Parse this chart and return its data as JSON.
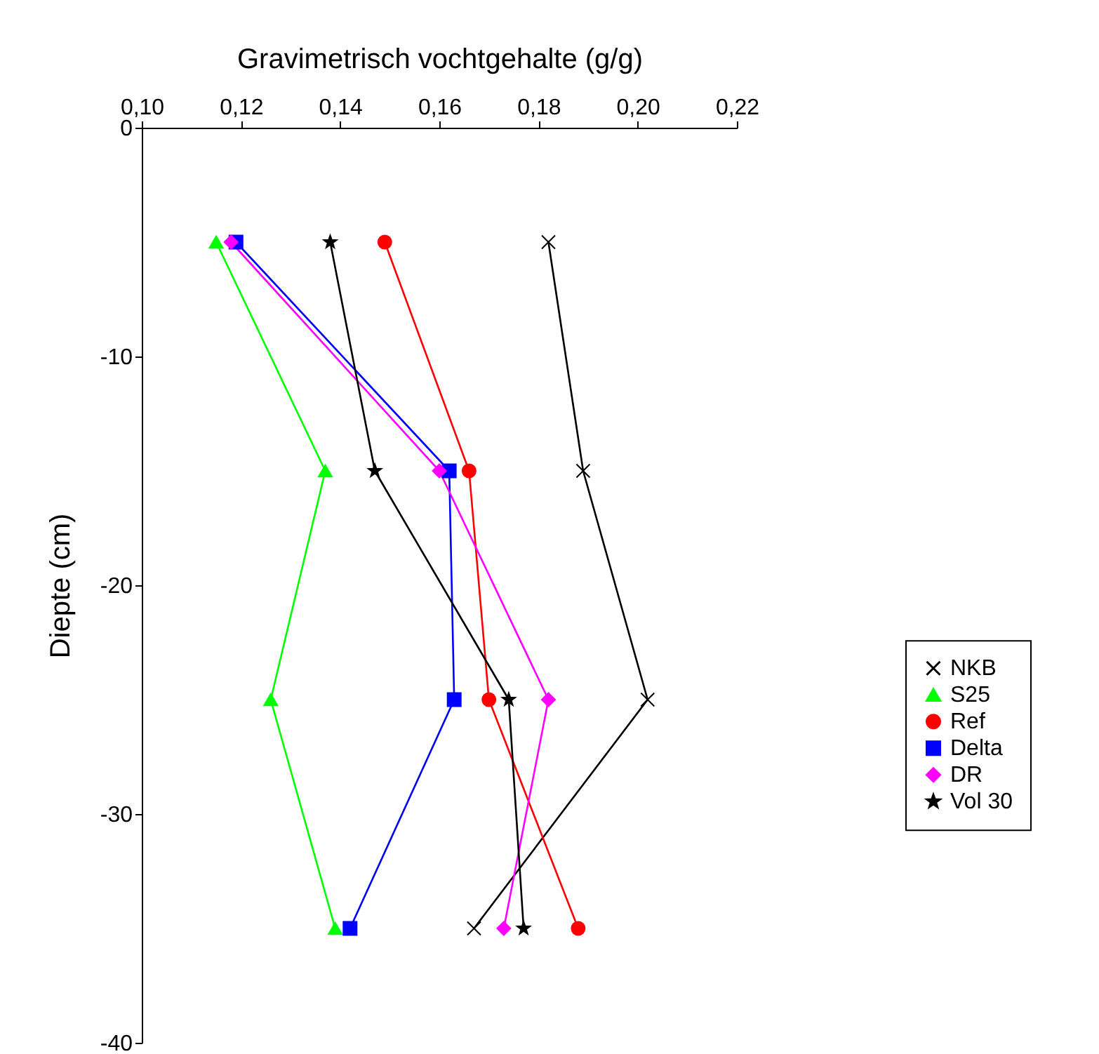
{
  "chart_data": {
    "type": "line",
    "xlabel": "Gravimetrisch vochtgehalte (g/g)",
    "ylabel": "Diepte (cm)",
    "xlim": [
      0.1,
      0.22
    ],
    "xticks": [
      {
        "value": 0.1,
        "label": "0,10"
      },
      {
        "value": 0.12,
        "label": "0,12"
      },
      {
        "value": 0.14,
        "label": "0,14"
      },
      {
        "value": 0.16,
        "label": "0,16"
      },
      {
        "value": 0.18,
        "label": "0,18"
      },
      {
        "value": 0.2,
        "label": "0,20"
      },
      {
        "value": 0.22,
        "label": "0,22"
      }
    ],
    "ylim": [
      -40,
      0
    ],
    "yticks": [
      0,
      -10,
      -20,
      -30,
      -40
    ],
    "grid": false,
    "legend": "right",
    "line_style": "solid",
    "series": [
      {
        "name": "NKB",
        "color": "#000000",
        "marker": "cross",
        "x": [
          0.182,
          0.189,
          0.202,
          0.167
        ],
        "values": [
          -5,
          -15,
          -25,
          -35
        ]
      },
      {
        "name": "S25",
        "color": "#00ff00",
        "marker": "triangle",
        "x": [
          0.115,
          0.137,
          0.126,
          0.139
        ],
        "values": [
          -5,
          -15,
          -25,
          -35
        ]
      },
      {
        "name": "Ref",
        "color": "#ff0000",
        "marker": "circle",
        "x": [
          0.149,
          0.166,
          0.17,
          0.188
        ],
        "values": [
          -5,
          -15,
          -25,
          -35
        ]
      },
      {
        "name": "Delta",
        "color": "#0000ff",
        "marker": "square",
        "x": [
          0.119,
          0.162,
          0.163,
          0.142
        ],
        "values": [
          -5,
          -15,
          -25,
          -35
        ]
      },
      {
        "name": "DR",
        "color": "#ff00ff",
        "marker": "diamond",
        "x": [
          0.118,
          0.16,
          0.182,
          0.173
        ],
        "values": [
          -5,
          -15,
          -25,
          -35
        ]
      },
      {
        "name": "Vol 30",
        "color": "#000000",
        "marker": "star",
        "x": [
          0.138,
          0.147,
          0.174,
          0.177
        ],
        "values": [
          -5,
          -15,
          -25,
          -35
        ]
      }
    ]
  }
}
